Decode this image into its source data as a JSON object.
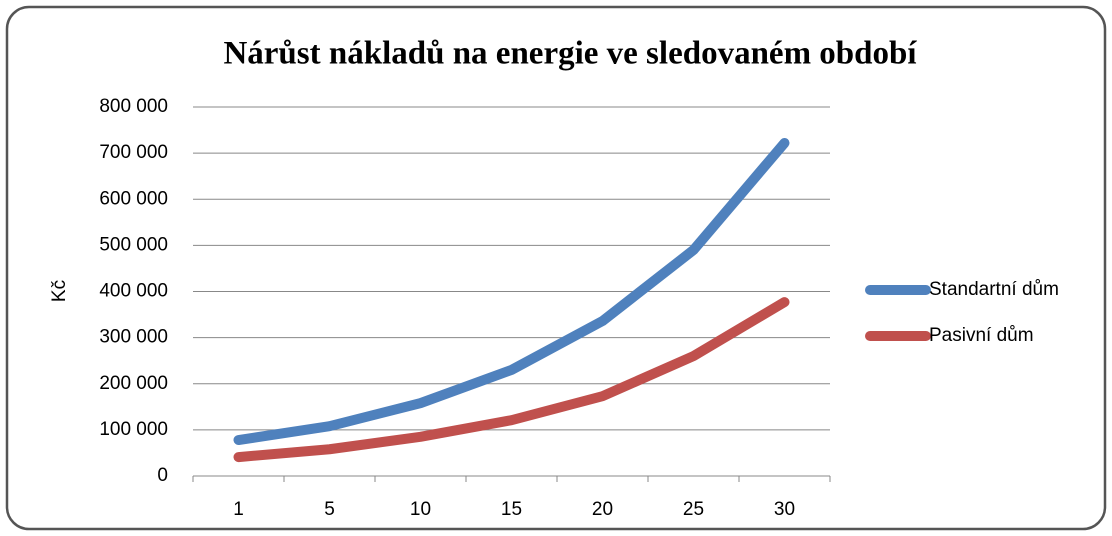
{
  "chart_data": {
    "type": "line",
    "title": "Nárůst nákladů na energie ve sledovaném období",
    "y_label": "Kč",
    "categories": [
      "1",
      "5",
      "10",
      "15",
      "20",
      "25",
      "30"
    ],
    "series": [
      {
        "name": "Standartní dům",
        "color": "#4f81bd",
        "values": [
          78000,
          108000,
          158000,
          230000,
          336000,
          490000,
          722000
        ]
      },
      {
        "name": "Pasivní dům",
        "color": "#c0504d",
        "values": [
          41000,
          58000,
          85000,
          121000,
          173000,
          260000,
          377000
        ]
      }
    ],
    "ylim": [
      0,
      800000
    ],
    "yticks": [
      0,
      {
        "value": 100000,
        "label": "100 000"
      },
      {
        "value": 200000,
        "label": "200 000"
      },
      {
        "value": 300000,
        "label": "300 000"
      },
      {
        "value": 400000,
        "label": "400 000"
      },
      {
        "value": 500000,
        "label": "500 000"
      },
      {
        "value": 600000,
        "label": "600 000"
      },
      {
        "value": 700000,
        "label": "700 000"
      },
      {
        "value": 800000,
        "label": "800 000"
      }
    ],
    "grid": true,
    "legend": "right"
  }
}
